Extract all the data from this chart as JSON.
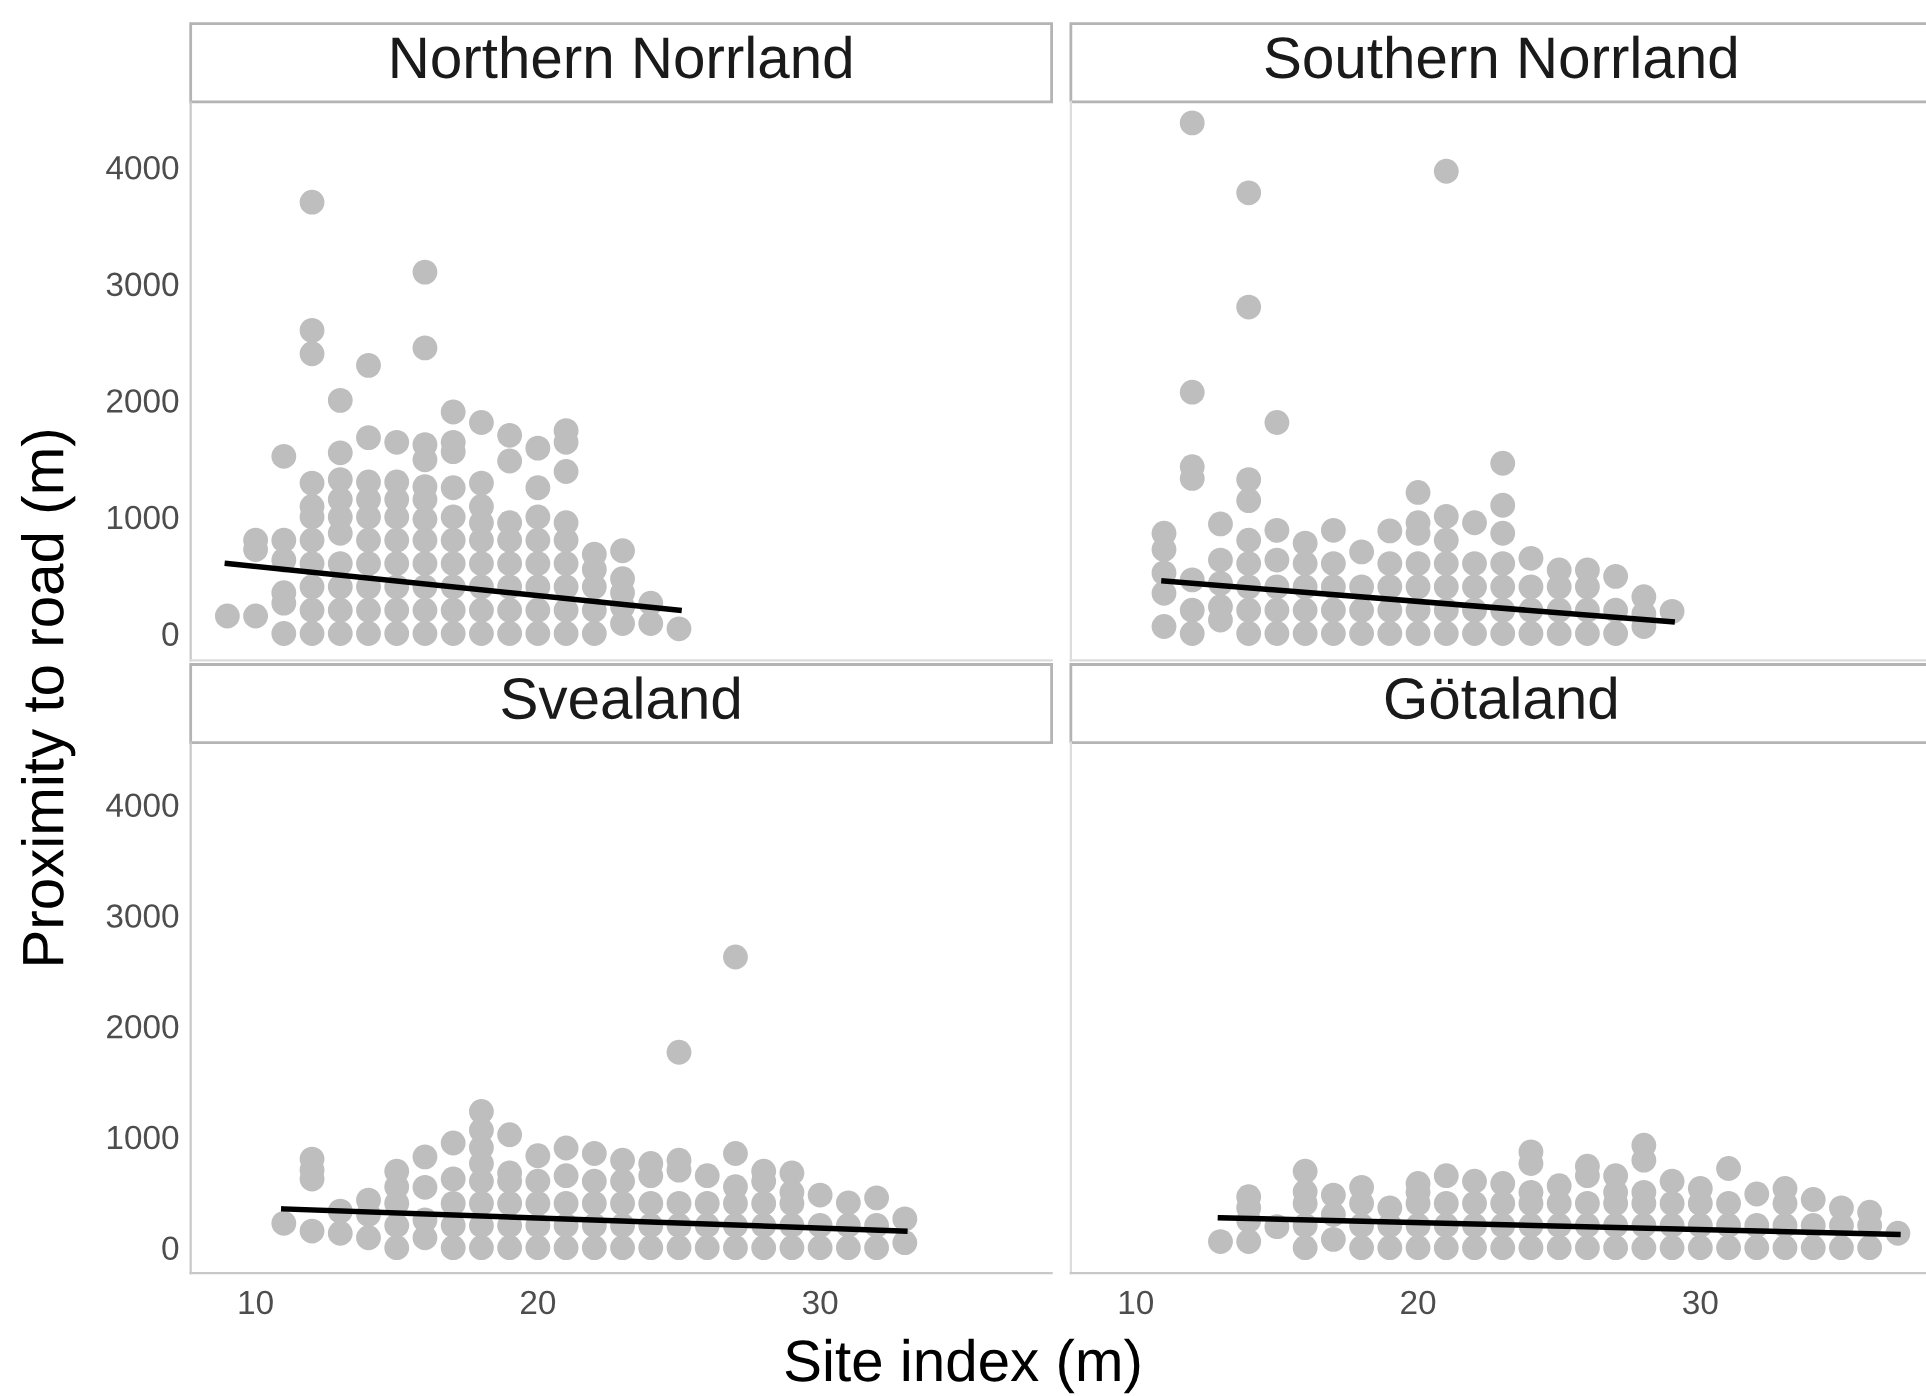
{
  "chart_data": [
    {
      "type": "scatter",
      "title": "Northern Norrland",
      "ylabel": "Proximity to road (m)",
      "xlim": [
        7.7,
        38.2
      ],
      "ylim": [
        -230,
        4560
      ],
      "yticks": [
        0,
        1000,
        2000,
        3000,
        4000
      ],
      "xticks": [
        10,
        20,
        30
      ],
      "tick_labels": "y",
      "grid": false,
      "legend": false,
      "series": [
        {
          "marker": "circle",
          "color": "#bebebe",
          "x": [
            9,
            10,
            10,
            10,
            11,
            11,
            11,
            11,
            11,
            11,
            12,
            12,
            12,
            12,
            12,
            12,
            12,
            12,
            12,
            12,
            12,
            13,
            13,
            13,
            13,
            13,
            13,
            13,
            13,
            13,
            13,
            14,
            14,
            14,
            14,
            14,
            14,
            14,
            14,
            14,
            14,
            15,
            15,
            15,
            15,
            15,
            15,
            15,
            15,
            15,
            16,
            16,
            16,
            16,
            16,
            16,
            16,
            16,
            16,
            16,
            16,
            16,
            17,
            17,
            17,
            17,
            17,
            17,
            17,
            17,
            17,
            17,
            18,
            18,
            18,
            18,
            18,
            18,
            18,
            18,
            18,
            19,
            19,
            19,
            19,
            19,
            19,
            19,
            19,
            20,
            20,
            20,
            20,
            20,
            20,
            20,
            20,
            21,
            21,
            21,
            21,
            21,
            21,
            21,
            21,
            21,
            22,
            22,
            22,
            22,
            22,
            23,
            23,
            23,
            23,
            23,
            24,
            24,
            25
          ],
          "values": [
            150,
            150,
            720,
            800,
            0,
            260,
            350,
            630,
            800,
            1520,
            0,
            200,
            400,
            600,
            800,
            1000,
            1090,
            1290,
            2400,
            2600,
            3700,
            0,
            200,
            400,
            600,
            860,
            1000,
            1150,
            1320,
            1550,
            2000,
            0,
            200,
            400,
            600,
            800,
            1000,
            1150,
            1300,
            1680,
            2300,
            0,
            200,
            400,
            600,
            800,
            1000,
            1150,
            1300,
            1640,
            0,
            200,
            400,
            600,
            800,
            980,
            1150,
            1260,
            1490,
            1620,
            2450,
            3100,
            0,
            200,
            400,
            600,
            800,
            1000,
            1250,
            1560,
            1640,
            1900,
            0,
            200,
            400,
            600,
            800,
            950,
            1090,
            1290,
            1810,
            0,
            200,
            400,
            600,
            800,
            950,
            1480,
            1700,
            0,
            200,
            400,
            600,
            800,
            1000,
            1250,
            1590,
            0,
            200,
            400,
            600,
            800,
            950,
            1390,
            1640,
            1740,
            0,
            200,
            400,
            550,
            680,
            85,
            230,
            350,
            470,
            710,
            85,
            260,
            40
          ]
        },
        {
          "type": "line",
          "color": "#000000",
          "x": [
            9,
            25
          ],
          "values": [
            600,
            200
          ]
        }
      ]
    },
    {
      "type": "scatter",
      "title": "Southern Norrland",
      "xlim": [
        7.7,
        38.2
      ],
      "ylim": [
        -230,
        4560
      ],
      "yticks": [
        0,
        1000,
        2000,
        3000,
        4000
      ],
      "xticks": [
        10,
        20,
        30
      ],
      "tick_labels": false,
      "grid": false,
      "legend": false,
      "series": [
        {
          "marker": "circle",
          "color": "#bebebe",
          "x": [
            11,
            11,
            11,
            11,
            11,
            12,
            12,
            12,
            12,
            12,
            12,
            12,
            13,
            13,
            13,
            13,
            13,
            14,
            14,
            14,
            14,
            14,
            14,
            14,
            14,
            14,
            15,
            15,
            15,
            15,
            15,
            15,
            16,
            16,
            16,
            16,
            16,
            17,
            17,
            17,
            17,
            17,
            18,
            18,
            18,
            18,
            19,
            19,
            19,
            19,
            19,
            20,
            20,
            20,
            20,
            20,
            20,
            20,
            21,
            21,
            21,
            21,
            21,
            21,
            21,
            22,
            22,
            22,
            22,
            22,
            23,
            23,
            23,
            23,
            23,
            23,
            23,
            24,
            24,
            24,
            24,
            25,
            25,
            25,
            25,
            26,
            26,
            26,
            26,
            27,
            27,
            27,
            28,
            28,
            28,
            29
          ],
          "values": [
            60,
            345,
            520,
            720,
            860,
            0,
            200,
            460,
            1330,
            1430,
            2070,
            4380,
            115,
            230,
            430,
            630,
            940,
            0,
            200,
            400,
            600,
            800,
            1140,
            1320,
            2800,
            3780,
            0,
            200,
            400,
            630,
            885,
            1810,
            0,
            200,
            400,
            600,
            775,
            0,
            200,
            400,
            600,
            885,
            0,
            200,
            400,
            700,
            0,
            200,
            400,
            600,
            880,
            0,
            200,
            400,
            600,
            860,
            950,
            1210,
            0,
            200,
            400,
            600,
            800,
            1005,
            3965,
            0,
            200,
            400,
            600,
            950,
            0,
            200,
            400,
            600,
            860,
            1100,
            1460,
            0,
            200,
            400,
            645,
            0,
            200,
            400,
            545,
            0,
            200,
            400,
            545,
            0,
            200,
            490,
            60,
            170,
            315,
            190
          ]
        },
        {
          "type": "line",
          "color": "#000000",
          "x": [
            11,
            29
          ],
          "values": [
            450,
            100
          ]
        }
      ]
    },
    {
      "type": "scatter",
      "title": "Svealand",
      "xlabel": "Site index (m)",
      "xlim": [
        7.7,
        38.2
      ],
      "ylim": [
        -230,
        4560
      ],
      "yticks": [
        0,
        1000,
        2000,
        3000,
        4000
      ],
      "xticks": [
        10,
        20,
        30
      ],
      "grid": false,
      "legend": false,
      "series": [
        {
          "marker": "circle",
          "color": "#bebebe",
          "x": [
            11,
            12,
            12,
            12,
            12,
            13,
            13,
            14,
            14,
            14,
            15,
            15,
            15,
            15,
            15,
            16,
            16,
            16,
            16,
            17,
            17,
            17,
            17,
            17,
            18,
            18,
            18,
            18,
            18,
            18,
            18,
            18,
            19,
            19,
            19,
            19,
            19,
            19,
            20,
            20,
            20,
            20,
            20,
            21,
            21,
            21,
            21,
            21,
            22,
            22,
            22,
            22,
            22,
            23,
            23,
            23,
            23,
            23,
            24,
            24,
            24,
            24,
            24,
            25,
            25,
            25,
            25,
            25,
            25,
            26,
            26,
            26,
            26,
            27,
            27,
            27,
            27,
            27,
            27,
            28,
            28,
            28,
            28,
            28,
            29,
            29,
            29,
            29,
            29,
            30,
            30,
            30,
            31,
            31,
            31,
            32,
            32,
            32,
            33,
            33
          ],
          "values": [
            220,
            150,
            620,
            700,
            800,
            130,
            330,
            90,
            300,
            430,
            0,
            200,
            400,
            550,
            690,
            90,
            250,
            545,
            820,
            0,
            200,
            400,
            620,
            945,
            0,
            200,
            400,
            600,
            760,
            905,
            1060,
            1230,
            0,
            200,
            400,
            600,
            675,
            1020,
            0,
            200,
            400,
            600,
            830,
            0,
            200,
            400,
            650,
            900,
            0,
            200,
            400,
            600,
            850,
            0,
            200,
            400,
            600,
            790,
            0,
            200,
            400,
            650,
            760,
            0,
            200,
            400,
            700,
            790,
            1765,
            0,
            200,
            400,
            650,
            0,
            200,
            400,
            550,
            850,
            2625,
            0,
            200,
            400,
            600,
            690,
            0,
            200,
            400,
            500,
            675,
            0,
            200,
            475,
            0,
            200,
            405,
            0,
            200,
            450,
            45,
            260
          ]
        },
        {
          "type": "line",
          "color": "#000000",
          "x": [
            11,
            33
          ],
          "values": [
            350,
            150
          ]
        }
      ]
    },
    {
      "type": "scatter",
      "title": "Götaland",
      "xlim": [
        7.7,
        38.2
      ],
      "ylim": [
        -230,
        4560
      ],
      "yticks": [
        0,
        1000,
        2000,
        3000,
        4000
      ],
      "xticks": [
        10,
        20,
        30
      ],
      "tick_labels": "x",
      "grid": false,
      "legend": false,
      "series": [
        {
          "marker": "circle",
          "color": "#bebebe",
          "x": [
            13,
            14,
            14,
            14,
            14,
            15,
            16,
            16,
            16,
            16,
            16,
            17,
            17,
            17,
            18,
            18,
            18,
            18,
            19,
            19,
            19,
            20,
            20,
            20,
            20,
            20,
            21,
            21,
            21,
            21,
            22,
            22,
            22,
            22,
            23,
            23,
            23,
            23,
            24,
            24,
            24,
            24,
            24,
            24,
            25,
            25,
            25,
            25,
            26,
            26,
            26,
            26,
            26,
            27,
            27,
            27,
            27,
            27,
            28,
            28,
            28,
            28,
            28,
            28,
            29,
            29,
            29,
            29,
            30,
            30,
            30,
            30,
            31,
            31,
            31,
            31,
            32,
            32,
            32,
            33,
            33,
            33,
            33,
            34,
            34,
            34,
            35,
            35,
            35,
            36,
            36,
            36,
            37
          ],
          "values": [
            55,
            55,
            245,
            360,
            460,
            190,
            0,
            200,
            400,
            505,
            690,
            75,
            300,
            475,
            0,
            200,
            400,
            545,
            0,
            200,
            360,
            0,
            200,
            400,
            500,
            580,
            0,
            200,
            400,
            650,
            0,
            200,
            400,
            600,
            0,
            200,
            400,
            580,
            0,
            200,
            400,
            500,
            760,
            865,
            0,
            200,
            400,
            560,
            0,
            200,
            400,
            650,
            735,
            0,
            200,
            400,
            500,
            650,
            0,
            200,
            400,
            500,
            790,
            925,
            0,
            200,
            400,
            600,
            0,
            200,
            400,
            535,
            0,
            200,
            400,
            715,
            0,
            200,
            485,
            0,
            200,
            400,
            535,
            0,
            200,
            435,
            0,
            200,
            360,
            0,
            200,
            320,
            130
          ]
        },
        {
          "type": "line",
          "color": "#000000",
          "x": [
            13,
            37
          ],
          "values": [
            270,
            120
          ]
        }
      ]
    }
  ]
}
